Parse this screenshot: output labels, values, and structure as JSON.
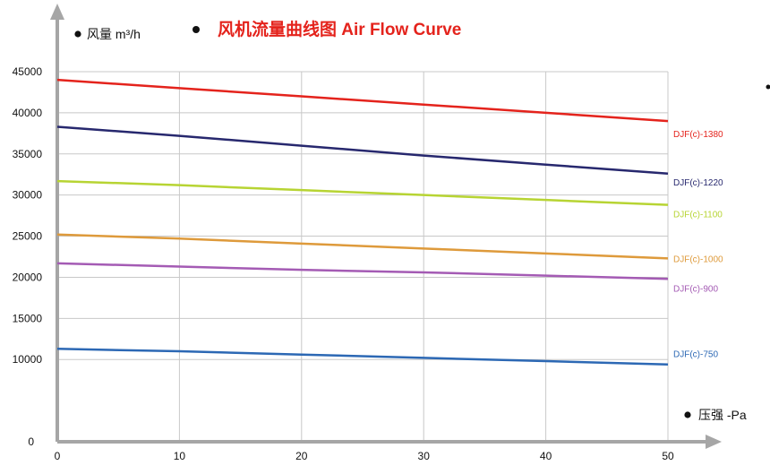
{
  "chart_data": {
    "type": "line",
    "title": "风机流量曲线图 Air Flow Curve",
    "ylabel": "风量 m³/h",
    "xlabel": "压强  -Pa",
    "x": [
      0,
      10,
      20,
      30,
      40,
      50
    ],
    "xlim": [
      0,
      50
    ],
    "ylim": [
      0,
      45000
    ],
    "yticks": [
      0,
      10000,
      15000,
      20000,
      25000,
      30000,
      35000,
      40000,
      45000
    ],
    "grid": true,
    "series": [
      {
        "name": "DJF(c)-1380",
        "color": "#e4231c",
        "values": [
          44000,
          43000,
          42000,
          41000,
          40000,
          39000
        ]
      },
      {
        "name": "DJF(c)-1220",
        "color": "#27286e",
        "values": [
          38300,
          37200,
          36000,
          34800,
          33700,
          32600
        ]
      },
      {
        "name": "DJF(c)-1100",
        "color": "#b7d433",
        "values": [
          31700,
          31200,
          30600,
          30000,
          29400,
          28800
        ]
      },
      {
        "name": "DJF(c)-1000",
        "color": "#de9a3b",
        "values": [
          25200,
          24700,
          24100,
          23500,
          22900,
          22300
        ]
      },
      {
        "name": "DJF(c)-900",
        "color": "#a45bb4",
        "values": [
          21700,
          21300,
          20900,
          20600,
          20200,
          19800
        ]
      },
      {
        "name": "DJF(c)-750",
        "color": "#2c68b4",
        "values": [
          11300,
          11000,
          10600,
          10200,
          9800,
          9400
        ]
      }
    ]
  }
}
